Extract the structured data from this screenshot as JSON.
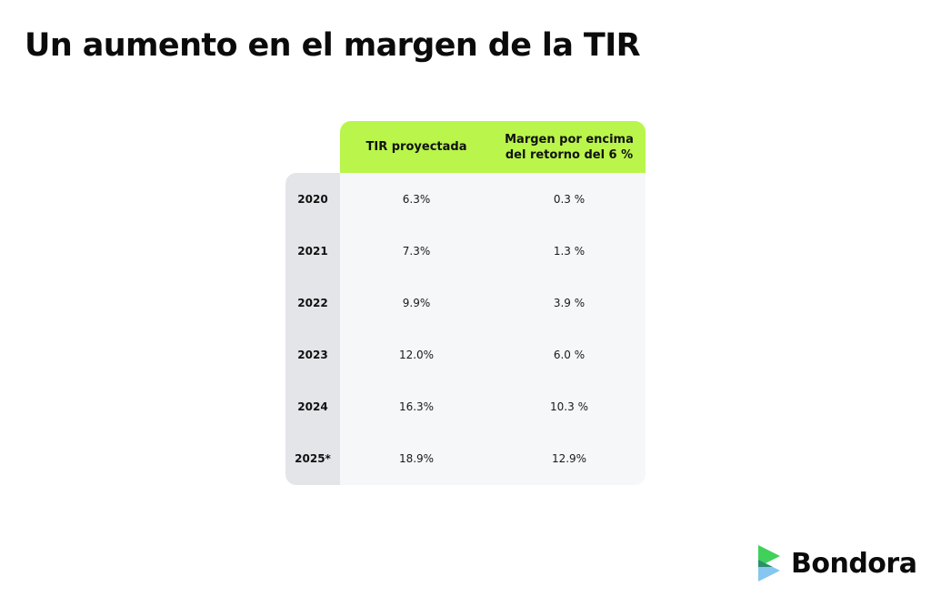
{
  "title": "Un aumento en el margen de la TIR",
  "chart_data": {
    "type": "table",
    "columns": [
      "TIR proyectada",
      "Margen por encima del retorno del 6 %"
    ],
    "rows": [
      {
        "year": "2020",
        "tir": "6.3%",
        "margin": "0.3 %"
      },
      {
        "year": "2021",
        "tir": "7.3%",
        "margin": "1.3 %"
      },
      {
        "year": "2022",
        "tir": "9.9%",
        "margin": "3.9 %"
      },
      {
        "year": "2023",
        "tir": "12.0%",
        "margin": "6.0 %"
      },
      {
        "year": "2024",
        "tir": "16.3%",
        "margin": "10.3 %"
      },
      {
        "year": "2025*",
        "tir": "18.9%",
        "margin": "12.9%"
      }
    ]
  },
  "table": {
    "header_tir": "TIR proyectada",
    "header_margin_line1": "Margen por encima",
    "header_margin_line2": "del retorno del 6 %"
  },
  "brand": {
    "name": "Bondora",
    "colors": {
      "accent_green": "#b9f54a",
      "logo_green": "#3fd15a",
      "logo_blue": "#7fc3f0"
    }
  }
}
